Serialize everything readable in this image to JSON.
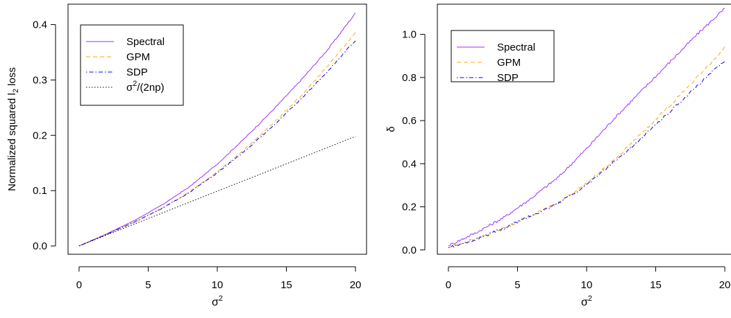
{
  "chart_data": [
    {
      "type": "line",
      "title": "",
      "xlabel": "σ",
      "xlabel_sup": "2",
      "ylabel": "Normalized squared l",
      "ylabel_sub": "2",
      "ylabel_suffix": " loss",
      "xlim": [
        -0.8,
        20.8
      ],
      "ylim": [
        -0.015,
        0.437
      ],
      "xticks": [
        "0",
        "5",
        "10",
        "15",
        "20"
      ],
      "yticks": [
        "0.0",
        "0.1",
        "0.2",
        "0.3",
        "0.4"
      ],
      "grid": false,
      "legend_position": "top-left",
      "series": [
        {
          "name": "Spectral",
          "color": "#9b30ff",
          "dash": "solid",
          "x": [
            0,
            2,
            4,
            6,
            8,
            10,
            12,
            14,
            16,
            18,
            20
          ],
          "y": [
            0.0,
            0.022,
            0.046,
            0.074,
            0.107,
            0.148,
            0.195,
            0.245,
            0.298,
            0.355,
            0.421
          ]
        },
        {
          "name": "GPM",
          "color": "#ffa500",
          "dash": "dashed",
          "x": [
            0,
            2,
            4,
            6,
            8,
            10,
            12,
            14,
            16,
            18,
            20
          ],
          "y": [
            0.0,
            0.021,
            0.043,
            0.068,
            0.098,
            0.134,
            0.175,
            0.221,
            0.27,
            0.325,
            0.386
          ]
        },
        {
          "name": "SDP",
          "color": "#0000ee",
          "dash": "dotdash",
          "x": [
            0,
            2,
            4,
            6,
            8,
            10,
            12,
            14,
            16,
            18,
            20
          ],
          "y": [
            0.0,
            0.021,
            0.043,
            0.068,
            0.097,
            0.132,
            0.172,
            0.216,
            0.264,
            0.316,
            0.372
          ]
        },
        {
          "name": "σ",
          "name_sup": "2",
          "name_suffix": "/(2np)",
          "color": "#000000",
          "dash": "dotted",
          "x": [
            0,
            20
          ],
          "y": [
            0.0,
            0.198
          ]
        }
      ]
    },
    {
      "type": "line",
      "title": "",
      "xlabel": "σ",
      "xlabel_sup": "2",
      "ylabel": "δ",
      "xlim": [
        -0.8,
        20.8
      ],
      "ylim": [
        -0.02,
        1.14
      ],
      "xticks": [
        "0",
        "5",
        "10",
        "15",
        "20"
      ],
      "yticks": [
        "0.0",
        "0.2",
        "0.4",
        "0.6",
        "0.8",
        "1.0"
      ],
      "grid": false,
      "legend_position": "top-left",
      "series": [
        {
          "name": "Spectral",
          "color": "#9b30ff",
          "dash": "solid",
          "x": [
            0,
            2,
            4,
            6,
            8,
            10,
            12,
            14,
            16,
            18,
            20
          ],
          "y": [
            0.02,
            0.08,
            0.15,
            0.24,
            0.34,
            0.47,
            0.61,
            0.74,
            0.87,
            1.0,
            1.12
          ]
        },
        {
          "name": "GPM",
          "color": "#ffa500",
          "dash": "dashed",
          "x": [
            0,
            2,
            4,
            6,
            8,
            10,
            12,
            14,
            16,
            18,
            20
          ],
          "y": [
            0.01,
            0.05,
            0.1,
            0.16,
            0.22,
            0.31,
            0.42,
            0.54,
            0.67,
            0.8,
            0.94
          ]
        },
        {
          "name": "SDP",
          "color": "#0000ee",
          "dash": "dotdash",
          "x": [
            0,
            2,
            4,
            6,
            8,
            10,
            12,
            14,
            16,
            18,
            20
          ],
          "y": [
            0.01,
            0.05,
            0.1,
            0.16,
            0.22,
            0.3,
            0.41,
            0.52,
            0.64,
            0.76,
            0.88
          ]
        }
      ]
    }
  ]
}
